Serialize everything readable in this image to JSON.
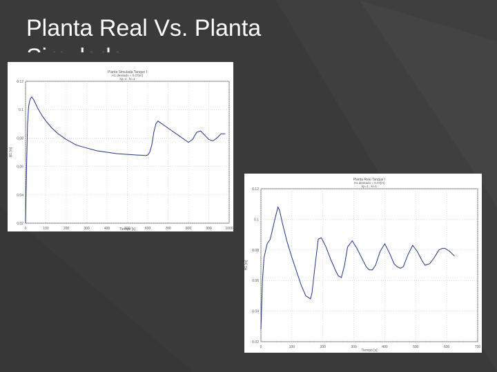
{
  "slide": {
    "title": "Planta Real Vs. Planta Simulada"
  },
  "colors": {
    "background": "#3a3a3a",
    "curve": "#1f2f8a",
    "grid": "#c8c8c8"
  },
  "chart_data": [
    {
      "type": "line",
      "title": "Planta Simulada Tanque I",
      "subtitle": "H1 deseado = 0.07[m]",
      "subtitle2": "kp=1 ; ki=1",
      "xlabel": "Tiempo [s]",
      "ylabel": "H1 [m]",
      "xlim": [
        0,
        1000
      ],
      "ylim": [
        0.02,
        0.12
      ],
      "xticks": [
        "0",
        "100",
        "200",
        "300",
        "400",
        "500",
        "600",
        "700",
        "800",
        "900",
        "1000"
      ],
      "yticks": [
        "0.02",
        "0.04",
        "0.06",
        "0.08",
        "0.1",
        "0.12"
      ],
      "grid": true,
      "series": [
        {
          "x": [
            0,
            5,
            10,
            15,
            20,
            25,
            30,
            40,
            50,
            60,
            80,
            100,
            130,
            160,
            200,
            250,
            300,
            350,
            400,
            450,
            500,
            550,
            580,
            590,
            600,
            610,
            620,
            630,
            640,
            650,
            660,
            680,
            700,
            720,
            750,
            780,
            800,
            820,
            840,
            860,
            880,
            900,
            920,
            940,
            960,
            980
          ],
          "values": [
            0.02,
            0.06,
            0.09,
            0.102,
            0.106,
            0.108,
            0.109,
            0.107,
            0.104,
            0.101,
            0.096,
            0.092,
            0.087,
            0.083,
            0.079,
            0.075,
            0.073,
            0.071,
            0.07,
            0.069,
            0.0685,
            0.068,
            0.0678,
            0.0676,
            0.068,
            0.07,
            0.075,
            0.084,
            0.09,
            0.092,
            0.091,
            0.089,
            0.087,
            0.085,
            0.082,
            0.079,
            0.077,
            0.079,
            0.084,
            0.085,
            0.082,
            0.079,
            0.078,
            0.08,
            0.083,
            0.083
          ]
        }
      ]
    },
    {
      "type": "line",
      "title": "Planta Real Tanque I",
      "subtitle": "H1 deseado = 0.07[m]",
      "subtitle2": "kp=1 ; ki=1",
      "xlabel": "Tiempo [s]",
      "ylabel": "H1 [m]",
      "xlim": [
        0,
        700
      ],
      "ylim": [
        0.02,
        0.12
      ],
      "xticks": [
        "0",
        "100",
        "200",
        "300",
        "400",
        "500",
        "600",
        "700"
      ],
      "yticks": [
        "0.02",
        "0.04",
        "0.06",
        "0.08",
        "0.1",
        "0.12"
      ],
      "grid": true,
      "series": [
        {
          "x": [
            0,
            5,
            10,
            20,
            30,
            45,
            55,
            60,
            70,
            85,
            100,
            115,
            130,
            145,
            160,
            165,
            175,
            185,
            195,
            210,
            225,
            240,
            250,
            260,
            270,
            280,
            295,
            310,
            325,
            340,
            350,
            360,
            370,
            385,
            400,
            415,
            430,
            440,
            450,
            460,
            475,
            490,
            505,
            520,
            530,
            545,
            560,
            575,
            585,
            595,
            610,
            625
          ],
          "values": [
            0.028,
            0.06,
            0.075,
            0.084,
            0.087,
            0.1,
            0.108,
            0.106,
            0.097,
            0.085,
            0.075,
            0.066,
            0.057,
            0.05,
            0.048,
            0.052,
            0.07,
            0.087,
            0.088,
            0.082,
            0.074,
            0.067,
            0.063,
            0.062,
            0.07,
            0.082,
            0.086,
            0.081,
            0.075,
            0.069,
            0.067,
            0.067,
            0.07,
            0.079,
            0.084,
            0.078,
            0.071,
            0.069,
            0.068,
            0.069,
            0.077,
            0.083,
            0.079,
            0.073,
            0.07,
            0.071,
            0.075,
            0.08,
            0.081,
            0.081,
            0.079,
            0.076
          ]
        }
      ]
    }
  ]
}
